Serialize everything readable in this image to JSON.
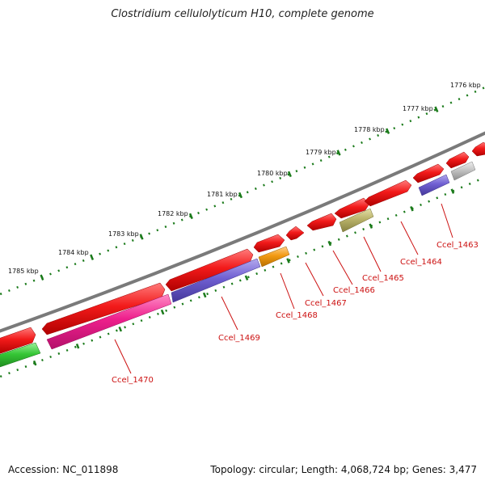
{
  "title": "Clostridium cellulolyticum H10, complete genome",
  "footer": {
    "accession": "Accession: NC_011898",
    "info": "Topology: circular; Length: 4,068,724 bp; Genes: 3,477"
  },
  "ruler_labels": [
    "1776 kbp",
    "1777 kbp",
    "1778 kbp",
    "1779 kbp",
    "1780 kbp",
    "1781 kbp",
    "1782 kbp",
    "1783 kbp",
    "1784 kbp",
    "1785 kbp"
  ],
  "gene_labels": [
    "Ccel_1463",
    "Ccel_1464",
    "Ccel_1465",
    "Ccel_1466",
    "Ccel_1467",
    "Ccel_1468",
    "Ccel_1469",
    "Ccel_1470"
  ],
  "colors": {
    "backbone": "#7a7a7a",
    "ticks": "#1a7a1a",
    "red": "#e8141e",
    "blue_purple": "#6a5acd",
    "magenta": "#ee1f8c",
    "green": "#3ac93a",
    "orange": "#f29a12",
    "olive": "#b9b26a",
    "gray": "#c4c4c4",
    "label": "#cc1111"
  }
}
